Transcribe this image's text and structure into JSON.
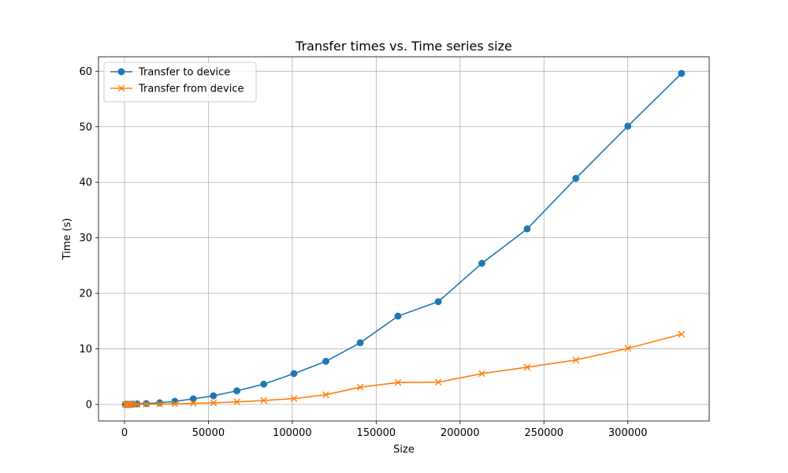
{
  "chart_data": {
    "type": "line",
    "title": "Transfer times vs. Time series size",
    "xlabel": "Size",
    "ylabel": "Time (s)",
    "xlim": [
      -15500,
      348500
    ],
    "ylim": [
      -2.98,
      62.6
    ],
    "xticks": [
      0,
      50000,
      100000,
      150000,
      200000,
      250000,
      300000
    ],
    "yticks": [
      0,
      10,
      20,
      30,
      40,
      50,
      60
    ],
    "grid": true,
    "legend_position": "upper left",
    "series": [
      {
        "name": "Transfer to device",
        "color": "#1f77b4",
        "marker": "circle",
        "x": [
          500,
          1500,
          2500,
          3500,
          5000,
          7500,
          13000,
          21000,
          30000,
          41000,
          53000,
          67000,
          83000,
          101000,
          120000,
          140500,
          163000,
          187000,
          213000,
          240000,
          269000,
          300000,
          332000
        ],
        "y": [
          0.0,
          0.0,
          0.0,
          0.0,
          0.05,
          0.1,
          0.15,
          0.3,
          0.55,
          1.0,
          1.55,
          2.45,
          3.65,
          5.55,
          7.75,
          11.1,
          15.9,
          18.5,
          25.4,
          31.6,
          40.7,
          50.1,
          59.6
        ]
      },
      {
        "name": "Transfer from device",
        "color": "#ff7f0e",
        "marker": "x",
        "x": [
          500,
          1500,
          2500,
          3500,
          5000,
          7500,
          13000,
          21000,
          30000,
          41000,
          53000,
          67000,
          83000,
          101000,
          120000,
          140500,
          163000,
          187000,
          213000,
          240000,
          269000,
          300000,
          332000
        ],
        "y": [
          0.0,
          0.0,
          0.0,
          0.0,
          0.0,
          0.0,
          0.03,
          0.06,
          0.1,
          0.2,
          0.3,
          0.45,
          0.7,
          1.05,
          1.75,
          3.1,
          3.95,
          4.0,
          5.55,
          6.7,
          8.0,
          10.1,
          12.65
        ]
      }
    ]
  }
}
